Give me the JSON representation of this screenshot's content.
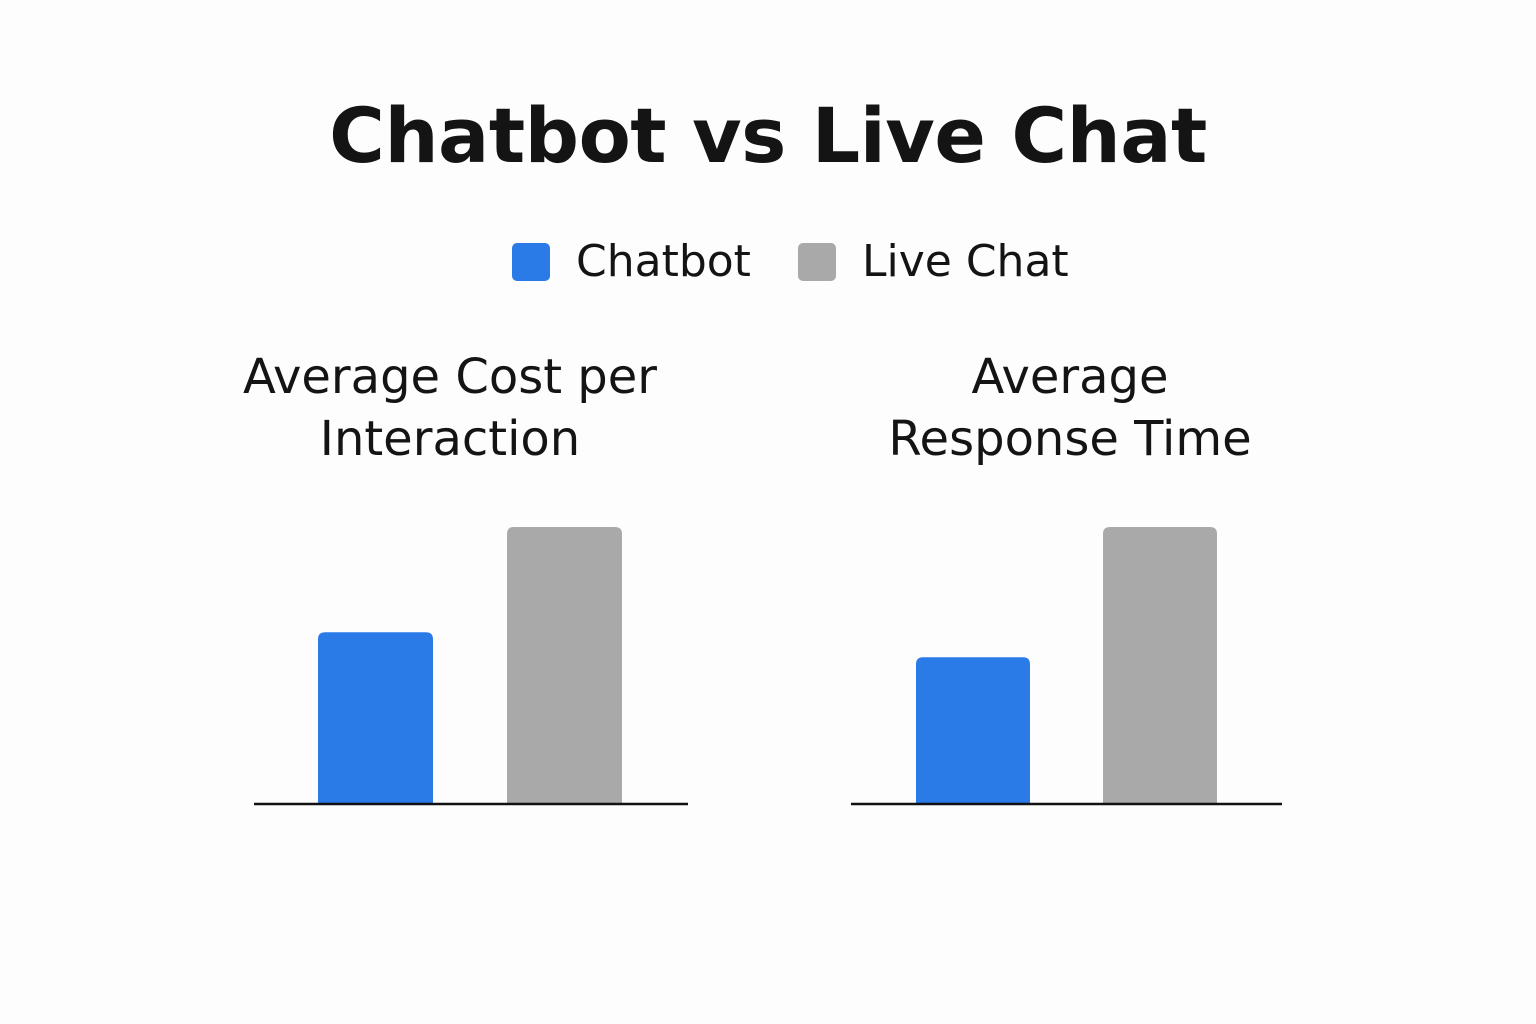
{
  "title": "Chatbot vs Live Chat",
  "legend": [
    {
      "label": "Chatbot",
      "color": "#2a7ae8"
    },
    {
      "label": "Live Chat",
      "color": "#a9a9a9"
    }
  ],
  "colors": {
    "chatbot": "#2a7ae8",
    "live_chat": "#a9a9a9",
    "baseline": "#111111"
  },
  "chart_data": [
    {
      "type": "bar",
      "title": "Average Cost per Interaction",
      "categories": [
        "Chatbot",
        "Live Chat"
      ],
      "values": [
        0.62,
        1.0
      ],
      "ylim": [
        0,
        1.0
      ],
      "grid": false,
      "legend_placement": "top-center"
    },
    {
      "type": "bar",
      "title": "Average Response Time",
      "categories": [
        "Chatbot",
        "Live Chat"
      ],
      "values": [
        0.53,
        1.0
      ],
      "ylim": [
        0,
        1.0
      ],
      "grid": false,
      "legend_placement": "top-center"
    }
  ]
}
